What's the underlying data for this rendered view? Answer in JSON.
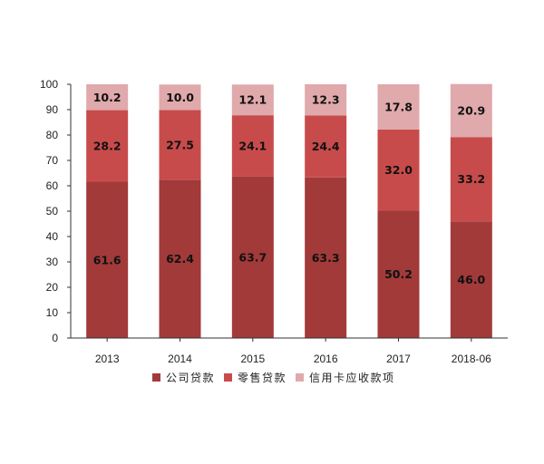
{
  "chart_data": {
    "type": "bar",
    "stacked": true,
    "categories": [
      "2013",
      "2014",
      "2015",
      "2016",
      "2017",
      "2018-06"
    ],
    "series": [
      {
        "name": "公司贷款",
        "color": "#A23A3A",
        "values": [
          61.6,
          62.4,
          63.7,
          63.3,
          50.2,
          46.0
        ]
      },
      {
        "name": "零售贷款",
        "color": "#C84B4B",
        "values": [
          28.2,
          27.5,
          24.1,
          24.4,
          32.0,
          33.2
        ]
      },
      {
        "name": "信用卡应收款项",
        "color": "#E0A9AB",
        "values": [
          10.2,
          10.0,
          12.1,
          12.3,
          17.8,
          20.9
        ]
      }
    ],
    "data_labels": [
      [
        "61.6",
        "62.4",
        "63.7",
        "63.3",
        "50.2",
        "46.0"
      ],
      [
        "28.2",
        "27.5",
        "24.1",
        "24.4",
        "32.0",
        "33.2"
      ],
      [
        "10.2",
        "10.0",
        "12.1",
        "12.3",
        "17.8",
        "20.9"
      ]
    ],
    "y_ticks": [
      "0",
      "10",
      "20",
      "30",
      "40",
      "50",
      "60",
      "70",
      "80",
      "90",
      "100"
    ],
    "ylim": [
      0,
      100
    ],
    "grid": false,
    "legend_position": "bottom"
  }
}
